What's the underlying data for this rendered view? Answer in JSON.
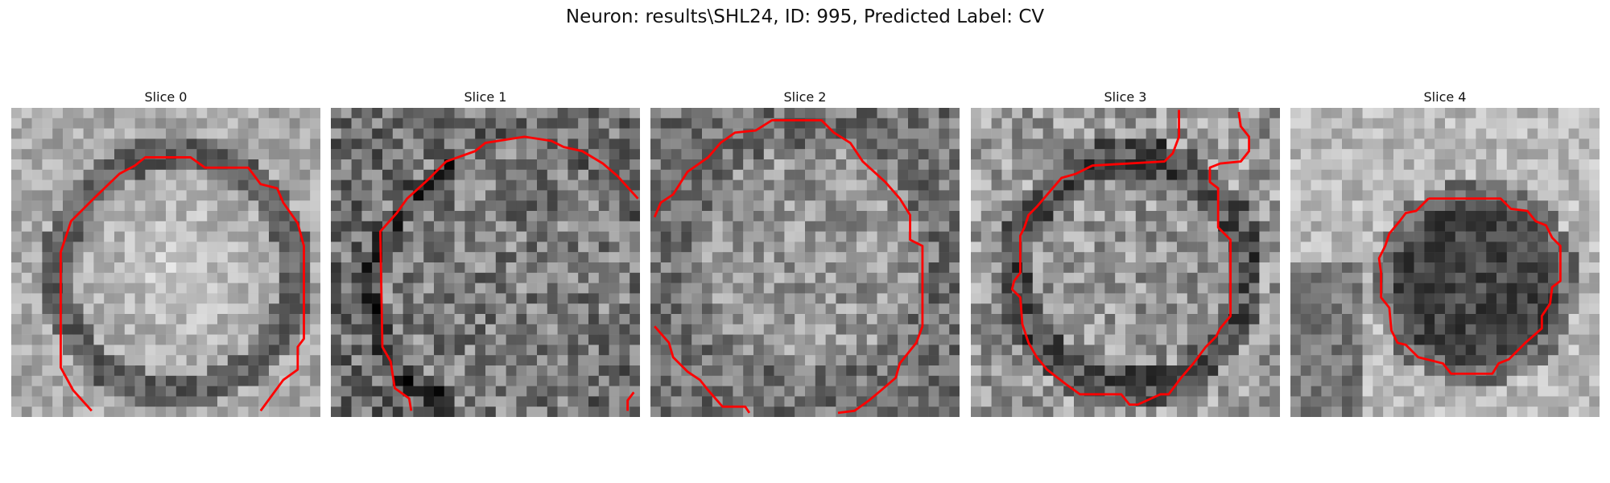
{
  "title": "Neuron: results\\SHL24, ID: 995, Predicted Label: CV",
  "colors": {
    "contour": "#ff0000",
    "background": "#ffffff"
  },
  "slices": [
    {
      "label": "Slice 0",
      "texture": "bright-center-dark-ring",
      "contour_present": true
    },
    {
      "label": "Slice 1",
      "texture": "dark-noisy",
      "contour_present": true
    },
    {
      "label": "Slice 2",
      "texture": "mid-gray-noisy",
      "contour_present": true
    },
    {
      "label": "Slice 3",
      "texture": "mid-gray-dark-ring",
      "contour_present": true
    },
    {
      "label": "Slice 4",
      "texture": "dark-blob-bright-surround",
      "contour_present": true
    }
  ]
}
